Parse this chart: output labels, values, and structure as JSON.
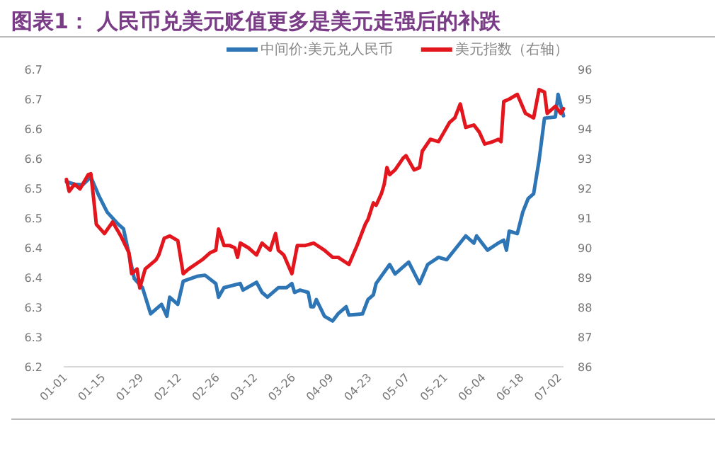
{
  "chart_data": {
    "type": "line",
    "title": "图表1：  人民币兑美元贬值更多是美元走强后的补跌",
    "legend": "top",
    "xlim": [
      "--01-01",
      "--07-04"
    ],
    "xticks": [
      {
        "value": "--01-01",
        "label": "01-01"
      },
      {
        "value": "--01-15",
        "label": "01-15"
      },
      {
        "value": "--01-29",
        "label": "01-29"
      },
      {
        "value": "--02-12",
        "label": "02-12"
      },
      {
        "value": "--02-26",
        "label": "02-26"
      },
      {
        "value": "--03-12",
        "label": "03-12"
      },
      {
        "value": "--03-26",
        "label": "03-26"
      },
      {
        "value": "--04-09",
        "label": "04-09"
      },
      {
        "value": "--04-23",
        "label": "04-23"
      },
      {
        "value": "--05-07",
        "label": "05-07"
      },
      {
        "value": "--05-21",
        "label": "05-21"
      },
      {
        "value": "--06-04",
        "label": "06-04"
      },
      {
        "value": "--06-18",
        "label": "06-18"
      },
      {
        "value": "--07-02",
        "label": "07-02"
      }
    ],
    "ylim": [
      6.2,
      6.7
    ],
    "yticks": [
      {
        "value": 6.2,
        "label": "6.2"
      },
      {
        "value": 6.25,
        "label": "6.3"
      },
      {
        "value": 6.3,
        "label": "6.3"
      },
      {
        "value": 6.35,
        "label": "6.4"
      },
      {
        "value": 6.4,
        "label": "6.4"
      },
      {
        "value": 6.45,
        "label": "6.5"
      },
      {
        "value": 6.5,
        "label": "6.5"
      },
      {
        "value": 6.55,
        "label": "6.6"
      },
      {
        "value": 6.6,
        "label": "6.6"
      },
      {
        "value": 6.65,
        "label": "6.7"
      },
      {
        "value": 6.7,
        "label": "6.7"
      }
    ],
    "y2lim": [
      86,
      96
    ],
    "y2ticks": [
      86,
      87,
      88,
      89,
      90,
      91,
      92,
      93,
      94,
      95,
      96
    ],
    "series": [
      {
        "name": "中间价:美元兑人民币",
        "color": "#2e75b6",
        "x": [
          "--01-02",
          "--01-05",
          "--01-08",
          "--01-11",
          "--01-14",
          "--01-17",
          "--01-21",
          "--01-23",
          "--01-27",
          "--01-30",
          "--02-02",
          "--02-06",
          "--02-08",
          "--02-09",
          "--02-12",
          "--02-14",
          "--02-19",
          "--02-22",
          "--02-26",
          "--02-27",
          "--03-01",
          "--03-07",
          "--03-08",
          "--03-13",
          "--03-15",
          "--03-17",
          "--03-21",
          "--03-24",
          "--03-26",
          "--03-27",
          "--03-29",
          "--04-01",
          "--04-02",
          "--04-03",
          "--04-04",
          "--04-07",
          "--04-10",
          "--04-12",
          "--04-15",
          "--04-16",
          "--04-21",
          "--04-23",
          "--04-25",
          "--04-26",
          "--05-01",
          "--05-03",
          "--05-08",
          "--05-12",
          "--05-15",
          "--05-19",
          "--05-22",
          "--05-29",
          "--06-01",
          "--06-02",
          "--06-06",
          "--06-10",
          "--06-12",
          "--06-13",
          "--06-14",
          "--06-17",
          "--06-19",
          "--06-21",
          "--06-23",
          "--06-25",
          "--06-27",
          "--07-01",
          "--07-02",
          "--07-04"
        ],
        "values": [
          6.511,
          6.507,
          6.506,
          6.519,
          6.487,
          6.46,
          6.44,
          6.432,
          6.348,
          6.333,
          6.289,
          6.305,
          6.285,
          6.317,
          6.305,
          6.344,
          6.352,
          6.354,
          6.34,
          6.317,
          6.333,
          6.34,
          6.329,
          6.342,
          6.325,
          6.317,
          6.333,
          6.333,
          6.34,
          6.325,
          6.329,
          6.325,
          6.301,
          6.301,
          6.313,
          6.285,
          6.277,
          6.289,
          6.301,
          6.287,
          6.289,
          6.313,
          6.321,
          6.34,
          6.372,
          6.356,
          6.376,
          6.34,
          6.372,
          6.384,
          6.38,
          6.42,
          6.408,
          6.42,
          6.396,
          6.408,
          6.413,
          6.396,
          6.428,
          6.424,
          6.46,
          6.483,
          6.491,
          6.547,
          6.618,
          6.62,
          6.658,
          6.622
        ]
      },
      {
        "name": "美元指数（右轴）",
        "color": "#e3161e",
        "axis": "y2",
        "x": [
          "--01-02",
          "--01-03",
          "--01-05",
          "--01-07",
          "--01-10",
          "--01-11",
          "--01-12",
          "--01-13",
          "--01-16",
          "--01-19",
          "--01-21",
          "--01-22",
          "--01-25",
          "--01-26",
          "--01-28",
          "--01-29",
          "--01-31",
          "--02-04",
          "--02-05",
          "--02-07",
          "--02-09",
          "--02-12",
          "--02-14",
          "--02-16",
          "--02-21",
          "--02-24",
          "--02-26",
          "--02-27",
          "--03-01",
          "--03-03",
          "--03-05",
          "--03-06",
          "--03-07",
          "--03-10",
          "--03-13",
          "--03-15",
          "--03-18",
          "--03-20",
          "--03-21",
          "--03-23",
          "--03-26",
          "--03-28",
          "--03-31",
          "--04-03",
          "--04-07",
          "--04-10",
          "--04-12",
          "--04-16",
          "--04-19",
          "--04-22",
          "--04-23",
          "--04-25",
          "--04-26",
          "--04-28",
          "--04-29",
          "--04-30",
          "--05-01",
          "--05-03",
          "--05-06",
          "--05-07",
          "--05-10",
          "--05-12",
          "--05-13",
          "--05-16",
          "--05-19",
          "--05-21",
          "--05-23",
          "--05-25",
          "--05-27",
          "--05-29",
          "--06-01",
          "--06-03",
          "--06-05",
          "--06-08",
          "--06-10",
          "--06-11",
          "--06-12",
          "--06-14",
          "--06-17",
          "--06-20",
          "--06-23",
          "--06-25",
          "--06-27",
          "--06-28",
          "--07-01",
          "--07-03",
          "--07-04"
        ],
        "values": [
          92.3,
          91.9,
          92.14,
          91.98,
          92.46,
          92.49,
          91.67,
          90.79,
          90.48,
          90.87,
          90.56,
          90.4,
          89.84,
          89.13,
          89.29,
          88.65,
          89.29,
          89.6,
          89.76,
          90.32,
          90.4,
          90.24,
          89.13,
          89.29,
          89.6,
          89.84,
          89.92,
          90.63,
          90.08,
          90.08,
          90.0,
          89.68,
          90.16,
          90.0,
          89.76,
          90.16,
          89.92,
          90.48,
          89.92,
          89.76,
          89.13,
          90.08,
          90.08,
          90.16,
          89.92,
          89.68,
          89.68,
          89.44,
          90.08,
          90.79,
          90.95,
          91.51,
          91.43,
          91.83,
          92.14,
          92.7,
          92.46,
          92.62,
          93.02,
          93.1,
          92.62,
          92.7,
          93.25,
          93.65,
          93.57,
          93.89,
          94.21,
          94.37,
          94.84,
          94.05,
          94.13,
          93.89,
          93.49,
          93.57,
          93.65,
          93.57,
          94.92,
          95.0,
          95.16,
          94.52,
          94.37,
          95.32,
          95.24,
          94.52,
          94.76,
          94.52,
          94.68
        ]
      }
    ]
  }
}
